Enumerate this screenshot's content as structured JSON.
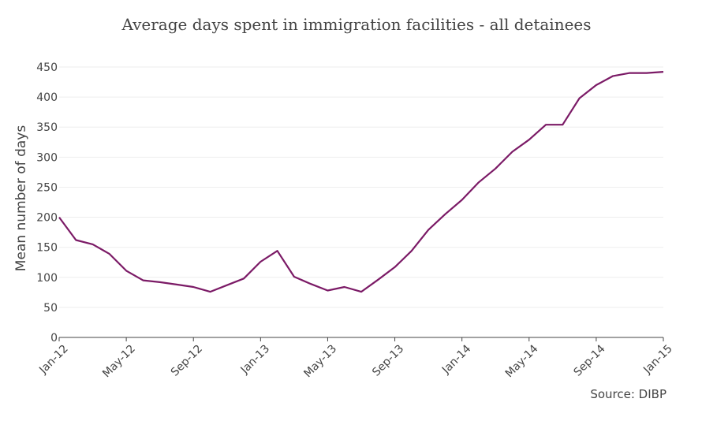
{
  "chart_data": {
    "type": "line",
    "title": "Average days spent in immigration facilities - all detainees",
    "ylabel": "Mean number of days",
    "xlabel": "",
    "source": "Source: DIBP",
    "ylim": [
      0,
      450
    ],
    "yticks": [
      0,
      50,
      100,
      150,
      200,
      250,
      300,
      350,
      400,
      450
    ],
    "xtick_labels": [
      "Jan-12",
      "May-12",
      "Sep-12",
      "Jan-13",
      "May-13",
      "Sep-13",
      "Jan-14",
      "May-14",
      "Sep-14",
      "Jan-15"
    ],
    "grid": true,
    "line_color": "#7b1a66",
    "x": [
      "Jan-12",
      "Feb-12",
      "Mar-12",
      "Apr-12",
      "May-12",
      "Jun-12",
      "Jul-12",
      "Aug-12",
      "Sep-12",
      "Oct-12",
      "Nov-12",
      "Dec-12",
      "Jan-13",
      "Feb-13",
      "Mar-13",
      "Apr-13",
      "May-13",
      "Jun-13",
      "Jul-13",
      "Aug-13",
      "Sep-13",
      "Oct-13",
      "Nov-13",
      "Dec-13",
      "Jan-14",
      "Feb-14",
      "Mar-14",
      "Apr-14",
      "May-14",
      "Jun-14",
      "Jul-14",
      "Aug-14",
      "Sep-14",
      "Oct-14",
      "Nov-14",
      "Dec-14",
      "Jan-15"
    ],
    "series": [
      {
        "values": [
          200,
          162,
          155,
          139,
          111,
          95,
          92,
          88,
          84,
          76,
          87,
          98,
          126,
          144,
          101,
          89,
          78,
          84,
          76,
          96,
          117,
          144,
          179,
          205,
          229,
          258,
          281,
          309,
          329,
          354,
          354,
          398,
          420,
          435,
          440,
          440,
          442
        ]
      }
    ]
  }
}
